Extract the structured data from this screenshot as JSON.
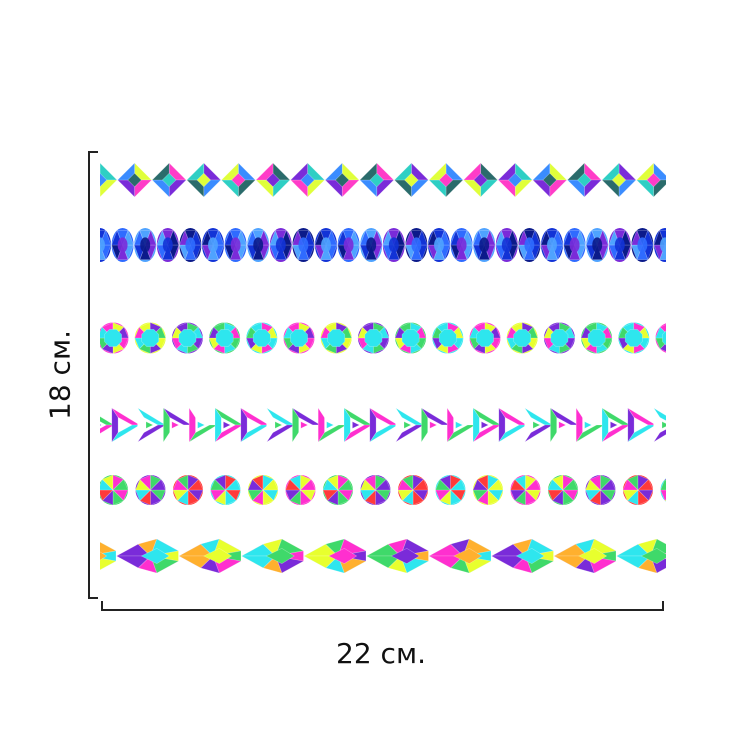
{
  "dimensions": {
    "width_label": "22 см.",
    "height_label": "18 см."
  },
  "sheet": {
    "rows": [
      {
        "shape": "rhombus-gem",
        "palette": [
          "#2ecfc4",
          "#e0ff3a",
          "#ff3cc8",
          "#7a2bd9",
          "#3a8cff",
          "#2a6b6b"
        ]
      },
      {
        "shape": "oval-gem",
        "palette": [
          "#1233d6",
          "#2f6bff",
          "#4fa3ff",
          "#7a2bd9",
          "#0b1a8a"
        ]
      },
      {
        "shape": "round-gem",
        "palette": [
          "#2ee6ee",
          "#ff2fcf",
          "#e8ff2e",
          "#7a2bd9",
          "#3fd96a"
        ]
      },
      {
        "shape": "triangle-gem",
        "palette": [
          "#3fd96a",
          "#ff2fcf",
          "#2ee6ee",
          "#7a2bd9",
          "#ffffff"
        ]
      },
      {
        "shape": "round-faceted-gem",
        "palette": [
          "#ff2fcf",
          "#3fd96a",
          "#7a2bd9",
          "#ff3a3a",
          "#2ee6ee",
          "#e8ff2e"
        ]
      },
      {
        "shape": "pear-gem",
        "palette": [
          "#3fd96a",
          "#ff2fcf",
          "#7a2bd9",
          "#ffb02e",
          "#2ee6ee",
          "#e8ff2e"
        ]
      }
    ]
  }
}
